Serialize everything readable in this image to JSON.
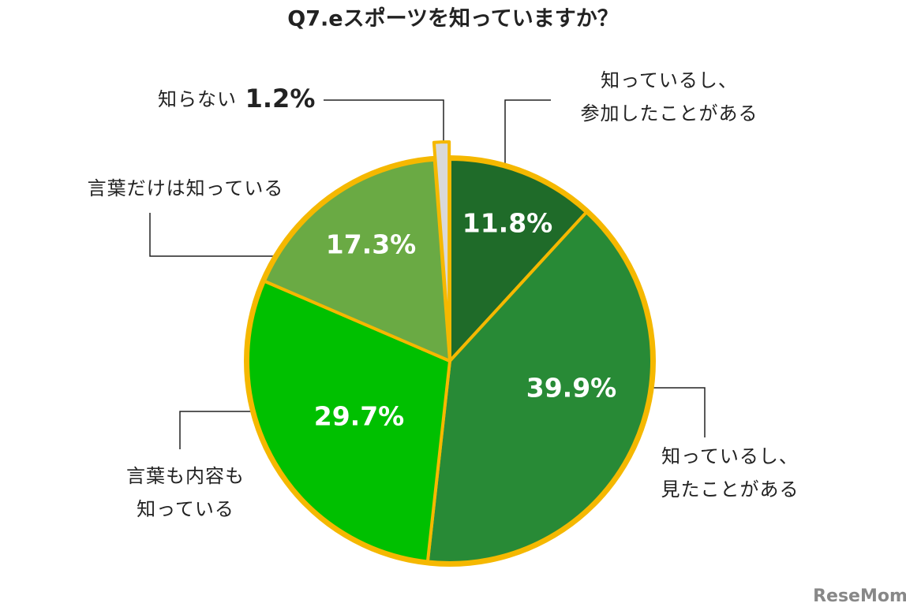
{
  "chart_data": {
    "type": "pie",
    "title": "Q7.eスポーツを知っていますか？",
    "categories": [
      "知っているし、\n参加したことがある",
      "知っているし、\n見たことがある",
      "言葉も内容も\n知っている",
      "言葉だけは知っている",
      "知らない"
    ],
    "values": [
      11.8,
      39.9,
      29.7,
      17.3,
      1.2
    ],
    "value_labels": [
      "11.8%",
      "39.9%",
      "29.7%",
      "17.3%",
      "1.2%"
    ],
    "colors": [
      "#1f6b29",
      "#288a36",
      "#00c000",
      "#6aaa44",
      "#d9d9d9"
    ],
    "border_color": "#f5b800",
    "watermark": "ReseMom"
  }
}
